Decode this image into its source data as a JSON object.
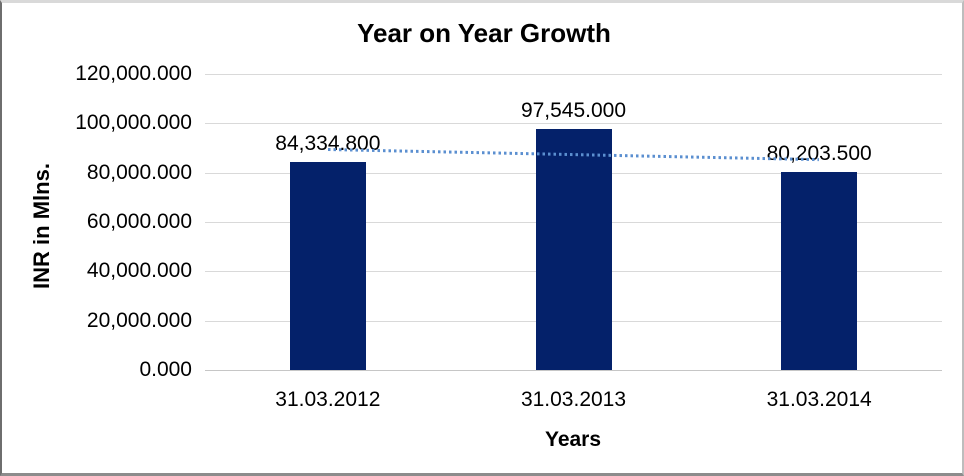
{
  "chart_data": {
    "type": "bar",
    "title": "Year on Year Growth",
    "xlabel": "Years",
    "ylabel": "INR in Mlns.",
    "categories": [
      "31.03.2012",
      "31.03.2013",
      "31.03.2014"
    ],
    "values": [
      84334.8,
      97545.0,
      80203.5
    ],
    "value_labels": [
      "84,334.800",
      "97,545.000",
      "80,203.500"
    ],
    "ylim": [
      0,
      120000
    ],
    "ytick_interval": 20000,
    "ytick_labels": [
      "120,000.000",
      "100,000.000",
      "80,000.000",
      "60,000.000",
      "40,000.000",
      "20,000.000",
      "0.000"
    ],
    "grid": "horizontal",
    "legend": "none",
    "trendline": {
      "type": "linear",
      "style": "dotted"
    },
    "colors": {
      "bar": "#04216a",
      "trendline": "#5b8fd0",
      "gridline": "#d9d9d9",
      "axis_line": "#c6c6c6",
      "text": "#000000"
    }
  }
}
